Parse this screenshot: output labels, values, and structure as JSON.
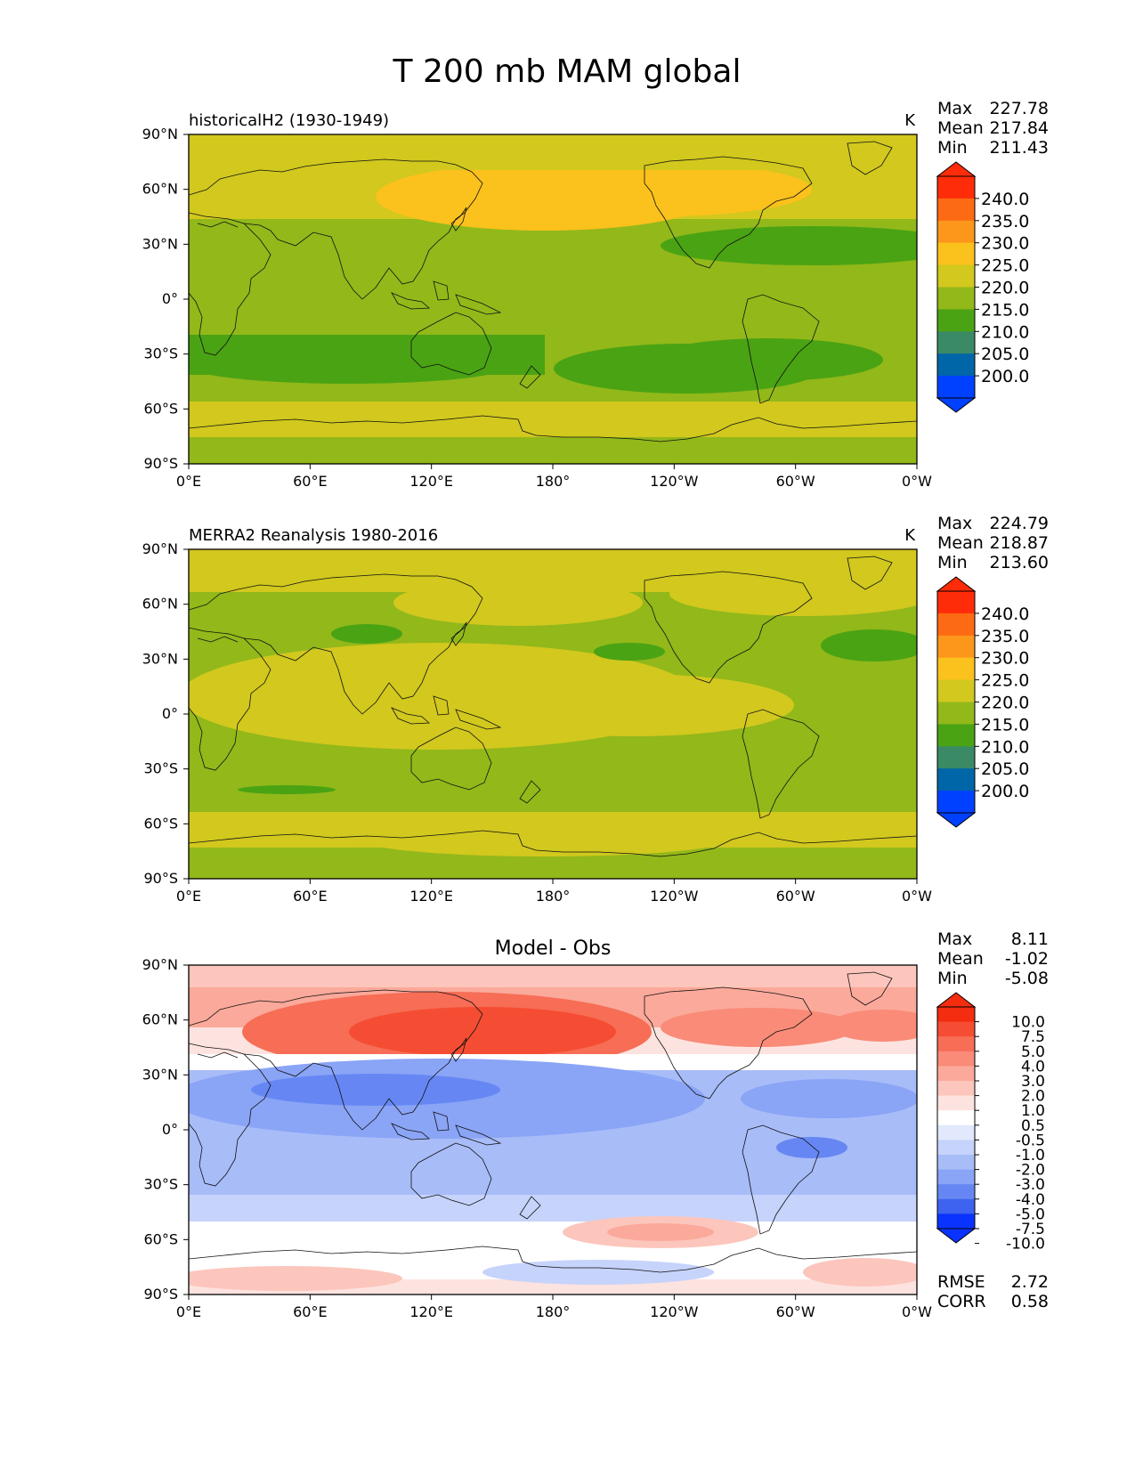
{
  "figure_title": "T 200 mb MAM global",
  "x_ticks": [
    "0°E",
    "60°E",
    "120°E",
    "180°",
    "120°W",
    "60°W",
    "0°W"
  ],
  "y_ticks": [
    "90°N",
    "60°N",
    "30°N",
    "0°",
    "30°S",
    "60°S",
    "90°S"
  ],
  "stat_labels": {
    "max": "Max",
    "mean": "Mean",
    "min": "Min",
    "rmse": "RMSE",
    "corr": "CORR"
  },
  "colors": {
    "abs_levels": [
      "#0040ff",
      "#0066a8",
      "#3a8a66",
      "#4aa313",
      "#92b81a",
      "#d2c81e",
      "#fbc11c",
      "#fc971c",
      "#fd6a14",
      "#ff2c09"
    ],
    "diff_levels": [
      "#0a33ff",
      "#3d63f0",
      "#6687f3",
      "#8aa4f6",
      "#a8bcf8",
      "#c6d3fb",
      "#e2e9fd",
      "#ffffff",
      "#fde3df",
      "#fcc6bc",
      "#fba99a",
      "#f98b78",
      "#f76d56",
      "#f54d33",
      "#f42d10"
    ]
  },
  "chart_data": [
    {
      "type": "heatmap",
      "title": "historicalH2 (1930-1949)",
      "units": "K",
      "stats": {
        "max": "227.78",
        "mean": "217.84",
        "min": "211.43"
      },
      "colorbar_ticks": [
        "240.0",
        "235.0",
        "230.0",
        "225.0",
        "220.0",
        "215.0",
        "210.0",
        "205.0",
        "200.0"
      ],
      "xlim": [
        0,
        360
      ],
      "ylim": [
        -90,
        90
      ]
    },
    {
      "type": "heatmap",
      "title": "MERRA2 Reanalysis 1980-2016",
      "units": "K",
      "stats": {
        "max": "224.79",
        "mean": "218.87",
        "min": "213.60"
      },
      "colorbar_ticks": [
        "240.0",
        "235.0",
        "230.0",
        "225.0",
        "220.0",
        "215.0",
        "210.0",
        "205.0",
        "200.0"
      ],
      "xlim": [
        0,
        360
      ],
      "ylim": [
        -90,
        90
      ]
    },
    {
      "type": "heatmap",
      "title": "Model - Obs",
      "stats": {
        "max": "8.11",
        "mean": "-1.02",
        "min": "-5.08",
        "rmse": "2.72",
        "corr": "0.58"
      },
      "colorbar_ticks": [
        "10.0",
        "7.5",
        "5.0",
        "4.0",
        "3.0",
        "2.0",
        "1.0",
        "0.5",
        "-0.5",
        "-1.0",
        "-2.0",
        "-3.0",
        "-4.0",
        "-5.0",
        "-7.5",
        "-10.0"
      ],
      "xlim": [
        0,
        360
      ],
      "ylim": [
        -90,
        90
      ]
    }
  ]
}
